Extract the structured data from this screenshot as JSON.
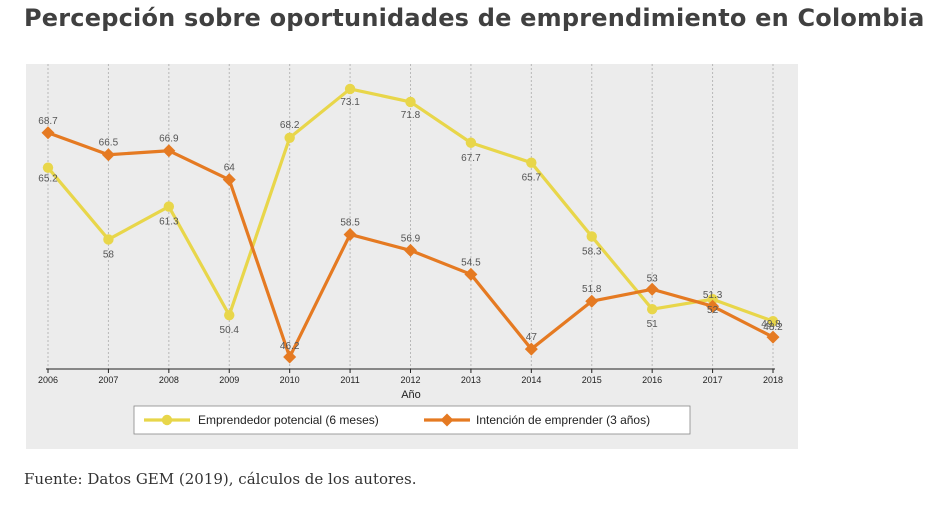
{
  "title": "Percepción sobre oportunidades de emprendimiento en Colombia",
  "source": "Fuente: Datos GEM (2019), cálculos de los autores.",
  "chart_data": {
    "type": "line",
    "xlabel": "Año",
    "ylabel": "",
    "x": [
      2006,
      2007,
      2008,
      2009,
      2010,
      2011,
      2012,
      2013,
      2014,
      2015,
      2016,
      2017,
      2018
    ],
    "ylim": [
      45,
      75
    ],
    "grid": "vertical-dotted",
    "legend_placement": "bottom",
    "series": [
      {
        "name": "Emprendedor potencial (6 meses)",
        "color": "#e8d64a",
        "marker": "circle",
        "values": [
          65.2,
          58,
          61.3,
          50.4,
          68.2,
          73.1,
          71.8,
          67.7,
          65.7,
          58.3,
          51,
          52,
          49.8
        ],
        "labels": [
          "65.2",
          "58",
          "61.3",
          "50.4",
          "68.2",
          "73.1",
          "71.8",
          "67.7",
          "65.7",
          "58.3",
          "51",
          "52",
          "49.8"
        ]
      },
      {
        "name": "Intención de emprender (3 años)",
        "color": "#e57a22",
        "marker": "diamond",
        "values": [
          68.7,
          66.5,
          66.9,
          64,
          46.2,
          58.5,
          56.9,
          54.5,
          47,
          51.8,
          53,
          51.3,
          48.2
        ],
        "labels": [
          "68.7",
          "66.5",
          "66.9",
          "64",
          "46.2",
          "58.5",
          "56.9",
          "54.5",
          "47",
          "51.8",
          "53",
          "51.3",
          "48.2"
        ]
      }
    ]
  }
}
